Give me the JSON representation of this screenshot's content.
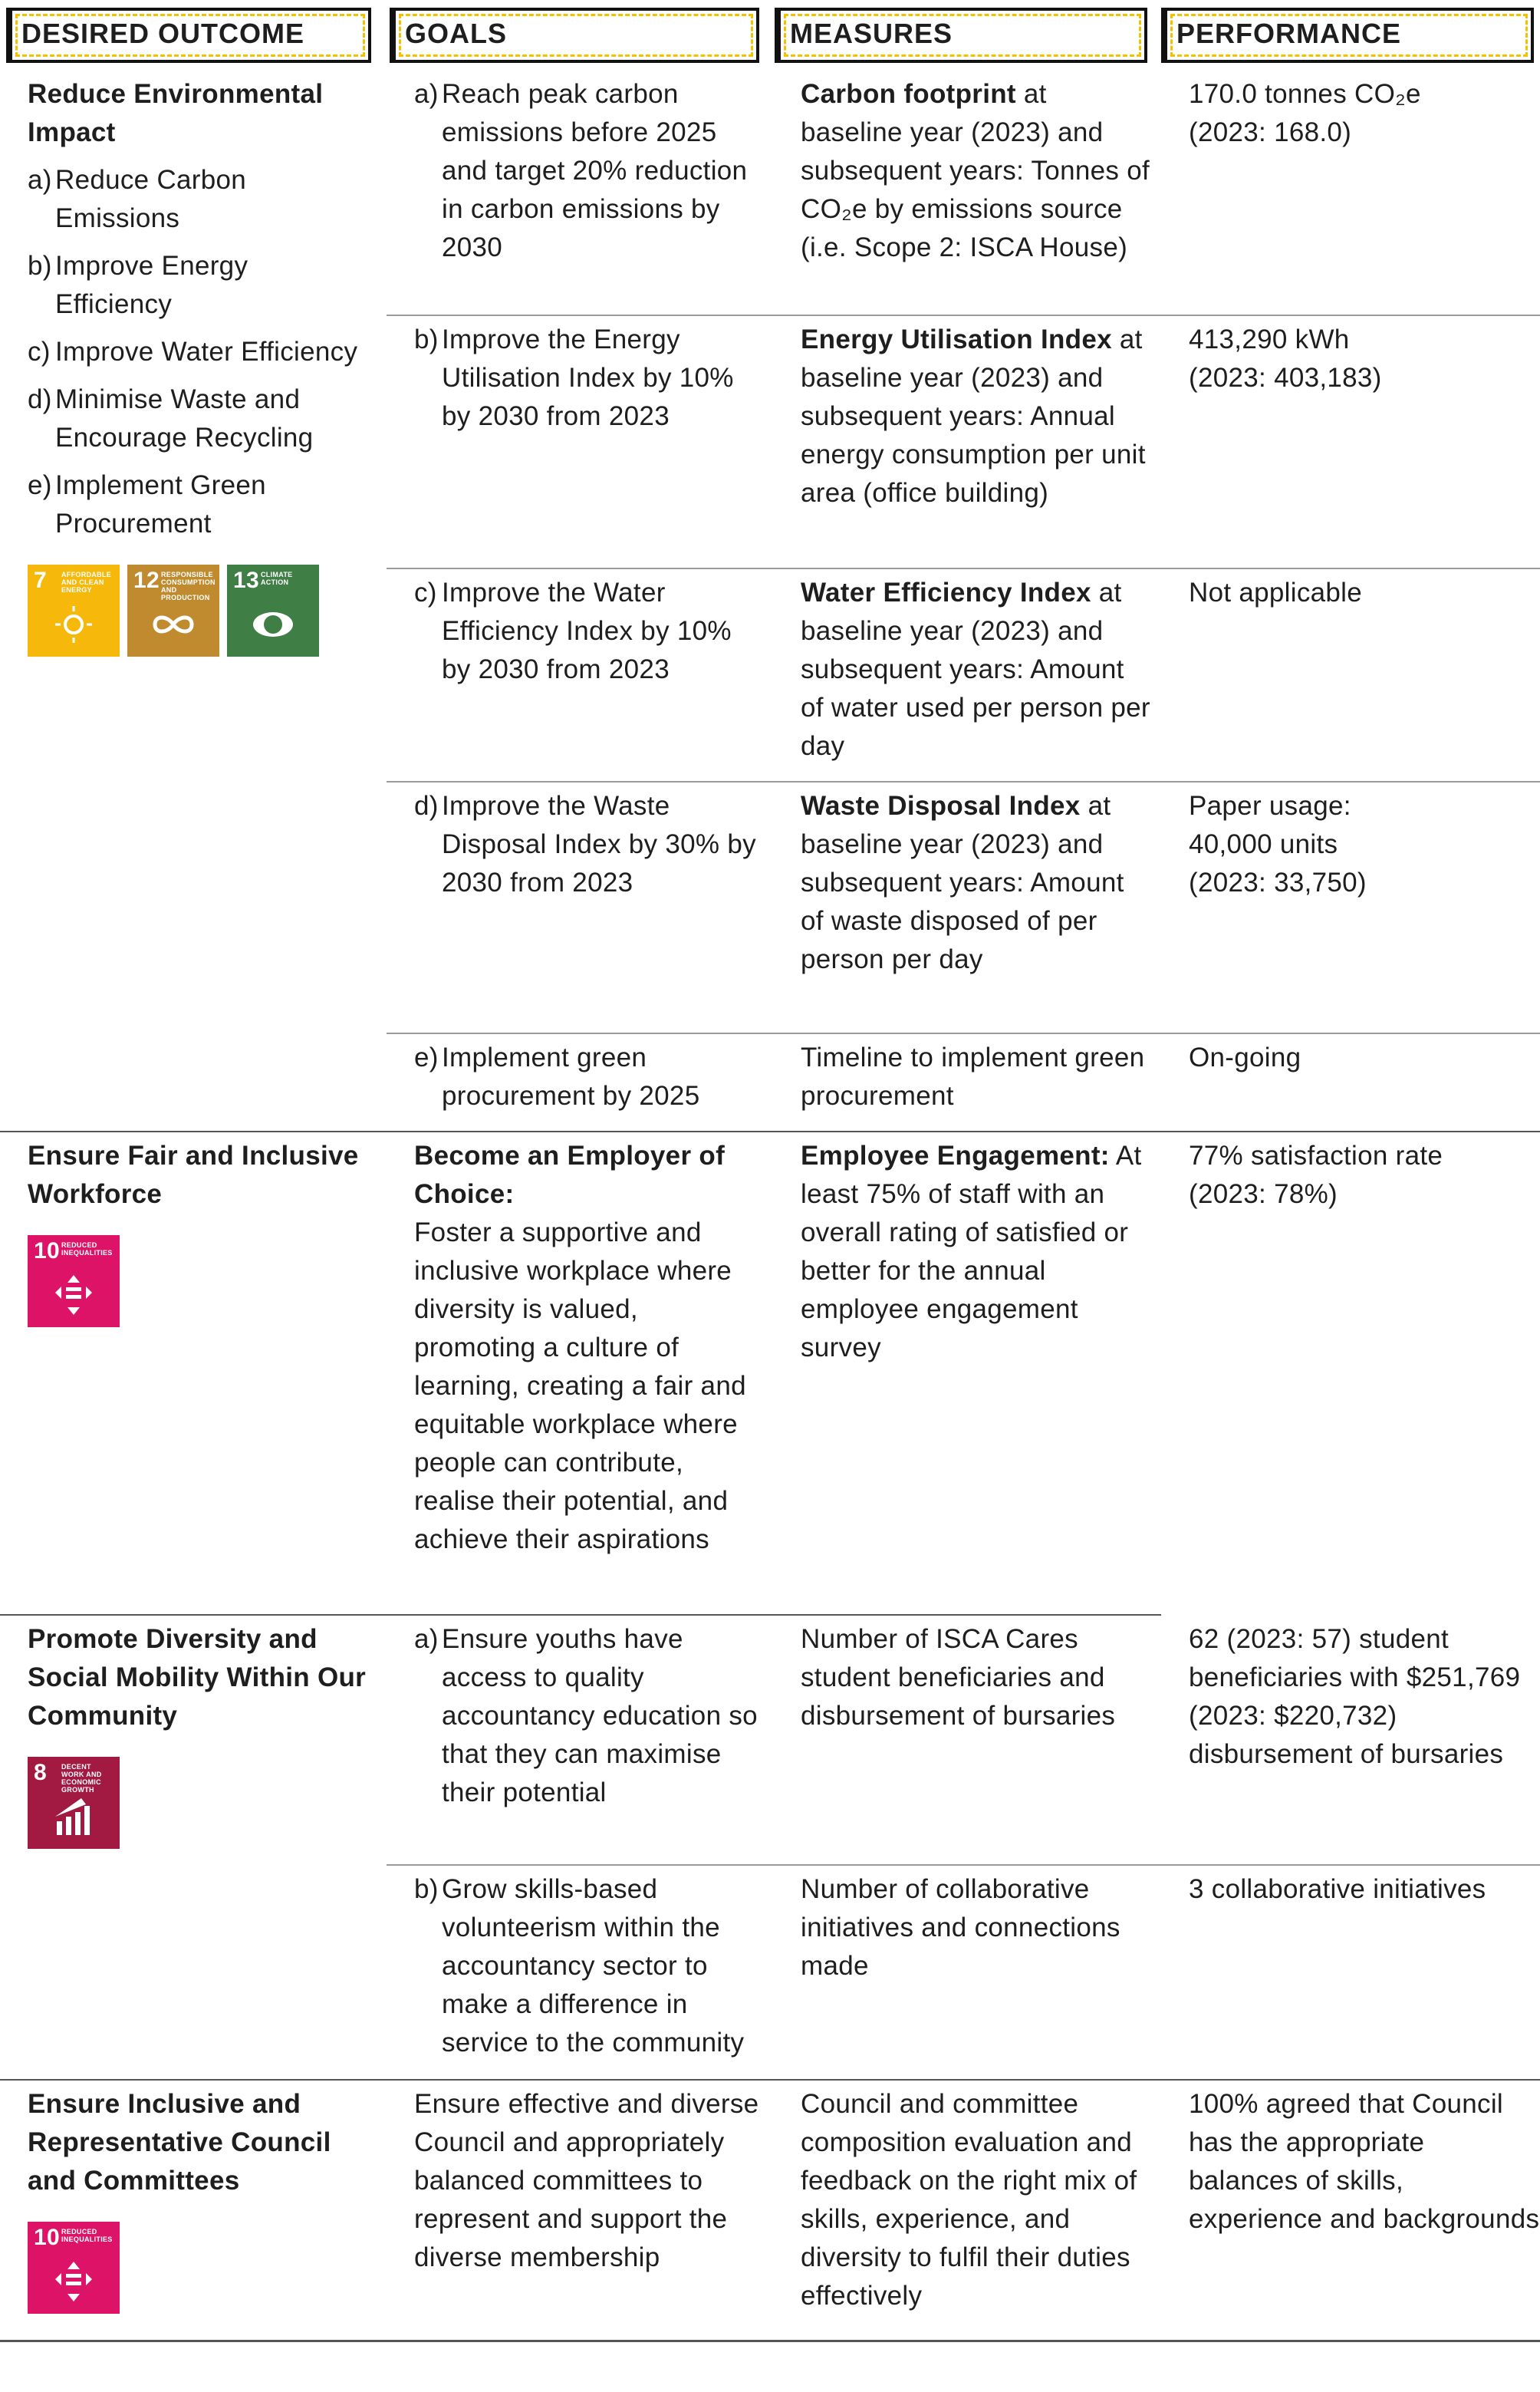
{
  "header": [
    "DESIRED OUTCOME",
    "GOALS",
    "MEASURES",
    "PERFORMANCE"
  ],
  "sections": [
    {
      "outcome": {
        "title": "Reduce Environmental Impact",
        "items": [
          {
            "marker": "a)",
            "text": "Reduce Carbon Emissions"
          },
          {
            "marker": "b)",
            "text": "Improve Energy Efficiency"
          },
          {
            "marker": "c)",
            "text": "Improve Water Efficiency"
          },
          {
            "marker": "d)",
            "text": "Minimise Waste and Encourage Recycling"
          },
          {
            "marker": "e)",
            "text": "Implement Green Procurement"
          }
        ]
      },
      "sdgs": [
        {
          "number": "7",
          "label": "AFFORDABLE AND CLEAN ENERGY"
        },
        {
          "number": "12",
          "label": "RESPONSIBLE CONSUMPTION AND PRODUCTION"
        },
        {
          "number": "13",
          "label": "CLIMATE ACTION"
        }
      ],
      "rows": [
        {
          "goal": {
            "marker": "a)",
            "text": "Reach peak carbon emissions before 2025 and target 20% reduction in carbon emissions by 2030"
          },
          "measure": {
            "bold": "Carbon footprint",
            "text": "at baseline year (2023) and subsequent years: Tonnes of CO₂e by emissions source (i.e. Scope 2: ISCA House)"
          },
          "performance": [
            "170.0 tonnes CO₂e",
            "(2023: 168.0)"
          ]
        },
        {
          "goal": {
            "marker": "b)",
            "text": "Improve the Energy Utilisation Index by 10% by 2030 from 2023"
          },
          "measure": {
            "bold": "Energy Utilisation Index",
            "text": "at baseline year (2023) and subsequent years: Annual energy consumption per unit area (office building)"
          },
          "performance": [
            "413,290 kWh",
            "(2023: 403,183)"
          ]
        },
        {
          "goal": {
            "marker": "c)",
            "text": "Improve the Water Efficiency Index by 10% by 2030 from 2023"
          },
          "measure": {
            "bold": "Water Efficiency Index",
            "text": "at baseline year (2023) and subsequent years: Amount of water used per person per day"
          },
          "performance": [
            "Not applicable"
          ]
        },
        {
          "goal": {
            "marker": "d)",
            "text": "Improve the Waste Disposal Index by 30% by 2030 from 2023"
          },
          "measure": {
            "bold": "Waste Disposal Index",
            "text": "at baseline year (2023) and subsequent years: Amount of waste disposed of per person per day"
          },
          "performance": [
            "Paper usage:",
            "40,000 units",
            "(2023: 33,750)"
          ]
        },
        {
          "goal": {
            "marker": "e)",
            "text": "Implement green procurement by 2025"
          },
          "measure": {
            "text": "Timeline to implement green procurement"
          },
          "performance": [
            "On-going"
          ]
        }
      ]
    },
    {
      "outcome": {
        "title": "Ensure Fair and Inclusive Workforce"
      },
      "sdgs": [
        {
          "number": "10",
          "label": "REDUCED INEQUALITIES"
        }
      ],
      "rows": [
        {
          "goal": {
            "bold": "Become an Employer of Choice:",
            "text": "Foster a supportive and inclusive workplace where diversity is valued, promoting a culture of learning, creating a fair and equitable workplace where people can contribute, realise their potential, and achieve their aspirations"
          },
          "measure": {
            "bold": "Employee Engagement:",
            "text": "At least 75% of staff with an overall rating of satisfied or better for the annual employee engagement survey"
          },
          "performance": [
            "77% satisfaction rate",
            "(2023: 78%)"
          ]
        }
      ]
    },
    {
      "outcome": {
        "title": "Promote Diversity and Social Mobility Within Our Community"
      },
      "sdgs": [
        {
          "number": "8",
          "label": "DECENT WORK AND ECONOMIC GROWTH"
        }
      ],
      "rows": [
        {
          "goal": {
            "marker": "a)",
            "text": "Ensure youths have access to quality accountancy education so that they can maximise their potential"
          },
          "measure": {
            "text": "Number of ISCA Cares student beneficiaries and disbursement of bursaries"
          },
          "performance": [
            "62 (2023: 57) student beneficiaries with $251,769 (2023: $220,732) disbursement of bursaries"
          ]
        },
        {
          "goal": {
            "marker": "b)",
            "text": "Grow skills-based volunteerism within the accountancy sector to make a difference in service to the community"
          },
          "measure": {
            "text": "Number of collaborative initiatives and connections made"
          },
          "performance": [
            "3 collaborative initiatives"
          ]
        }
      ]
    },
    {
      "outcome": {
        "title": "Ensure Inclusive and Representative Council and Committees"
      },
      "sdgs": [
        {
          "number": "10",
          "label": "REDUCED INEQUALITIES"
        }
      ],
      "rows": [
        {
          "goal": {
            "text": "Ensure effective and diverse Council and appropriately balanced committees to represent and support the diverse membership"
          },
          "measure": {
            "text": "Council and committee composition evaluation and feedback on the right mix of skills, experience, and diversity to fulfil their duties effectively"
          },
          "performance": [
            "100% agreed that Council has the appropriate balances of skills, experience and backgrounds"
          ]
        }
      ]
    }
  ]
}
